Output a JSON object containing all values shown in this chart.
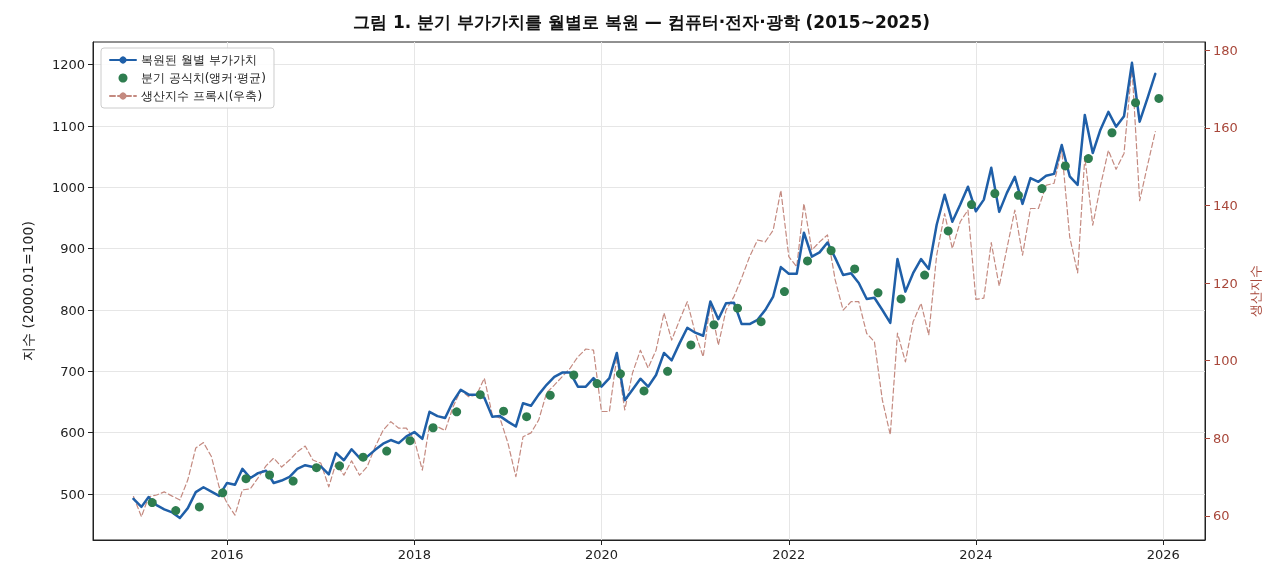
{
  "chart_data": {
    "type": "line",
    "title": "그림 1. 분기 부가가치를 월별로 복원 — 컴퓨터·전자·광학 (2015~2025)",
    "ylabel": "지수 (2000.01=100)",
    "y2label": "생산지수",
    "x": [
      "2015-01",
      "2015-02",
      "2015-03",
      "2015-04",
      "2015-05",
      "2015-06",
      "2015-07",
      "2015-08",
      "2015-09",
      "2015-10",
      "2015-11",
      "2015-12",
      "2016-01",
      "2016-02",
      "2016-03",
      "2016-04",
      "2016-05",
      "2016-06",
      "2016-07",
      "2016-08",
      "2016-09",
      "2016-10",
      "2016-11",
      "2016-12",
      "2017-01",
      "2017-02",
      "2017-03",
      "2017-04",
      "2017-05",
      "2017-06",
      "2017-07",
      "2017-08",
      "2017-09",
      "2017-10",
      "2017-11",
      "2017-12",
      "2018-01",
      "2018-02",
      "2018-03",
      "2018-04",
      "2018-05",
      "2018-06",
      "2018-07",
      "2018-08",
      "2018-09",
      "2018-10",
      "2018-11",
      "2018-12",
      "2019-01",
      "2019-02",
      "2019-03",
      "2019-04",
      "2019-05",
      "2019-06",
      "2019-07",
      "2019-08",
      "2019-09",
      "2019-10",
      "2019-11",
      "2019-12",
      "2020-01",
      "2020-02",
      "2020-03",
      "2020-04",
      "2020-05",
      "2020-06",
      "2020-07",
      "2020-08",
      "2020-09",
      "2020-10",
      "2020-11",
      "2020-12",
      "2021-01",
      "2021-02",
      "2021-03",
      "2021-04",
      "2021-05",
      "2021-06",
      "2021-07",
      "2021-08",
      "2021-09",
      "2021-10",
      "2021-11",
      "2021-12",
      "2022-01",
      "2022-02",
      "2022-03",
      "2022-04",
      "2022-05",
      "2022-06",
      "2022-07",
      "2022-08",
      "2022-09",
      "2022-10",
      "2022-11",
      "2022-12",
      "2023-01",
      "2023-02",
      "2023-03",
      "2023-04",
      "2023-05",
      "2023-06",
      "2023-07",
      "2023-08",
      "2023-09",
      "2023-10",
      "2023-11",
      "2023-12",
      "2024-01",
      "2024-02",
      "2024-03",
      "2024-04",
      "2024-05",
      "2024-06",
      "2024-07",
      "2024-08",
      "2024-09",
      "2024-10",
      "2024-11",
      "2024-12",
      "2025-01",
      "2025-02",
      "2025-03",
      "2025-04",
      "2025-05",
      "2025-06",
      "2025-07",
      "2025-08",
      "2025-09",
      "2025-10",
      "2025-11",
      "2025-12"
    ],
    "series": [
      {
        "name": "복원된 월별 부가가치",
        "type": "line",
        "color": "#1f5fa8",
        "marker": "none",
        "line_style": "solid",
        "values": [
          492,
          479,
          495,
          482,
          475,
          470,
          461,
          477,
          503,
          511,
          504,
          497,
          518,
          515,
          541,
          526,
          534,
          538,
          518,
          522,
          528,
          541,
          547,
          544,
          545,
          532,
          567,
          555,
          573,
          559,
          561,
          572,
          582,
          588,
          583,
          594,
          601,
          590,
          634,
          627,
          624,
          651,
          670,
          662,
          662,
          657,
          626,
          627,
          618,
          610,
          648,
          644,
          662,
          678,
          691,
          698,
          698,
          675,
          675,
          689,
          675,
          689,
          730,
          653,
          670,
          688,
          675,
          694,
          730,
          718,
          746,
          771,
          763,
          758,
          814,
          785,
          811,
          812,
          777,
          777,
          784,
          800,
          822,
          870,
          859,
          859,
          926,
          887,
          894,
          910,
          885,
          857,
          860,
          844,
          818,
          820,
          800,
          779,
          883,
          830,
          860,
          883,
          867,
          939,
          988,
          944,
          972,
          1001,
          961,
          980,
          1032,
          960,
          991,
          1017,
          973,
          1015,
          1009,
          1019,
          1022,
          1069,
          1018,
          1004,
          1118,
          1056,
          1094,
          1123,
          1099,
          1116,
          1203,
          1107,
          1146,
          1185
        ]
      },
      {
        "name": "분기 공식치(앵커·평균)",
        "type": "scatter",
        "color": "#2e7d4f",
        "marker": "circle",
        "x": [
          "2015-03-15",
          "2015-06-15",
          "2015-09-15",
          "2015-12-15",
          "2016-03-15",
          "2016-06-15",
          "2016-09-15",
          "2016-12-15",
          "2017-03-15",
          "2017-06-15",
          "2017-09-15",
          "2017-12-15",
          "2018-03-15",
          "2018-06-15",
          "2018-09-15",
          "2018-12-15",
          "2019-03-15",
          "2019-06-15",
          "2019-09-15",
          "2019-12-15",
          "2020-03-15",
          "2020-06-15",
          "2020-09-15",
          "2020-12-15",
          "2021-03-15",
          "2021-06-15",
          "2021-09-15",
          "2021-12-15",
          "2022-03-15",
          "2022-06-15",
          "2022-09-15",
          "2022-12-15",
          "2023-03-15",
          "2023-06-15",
          "2023-09-15",
          "2023-12-15",
          "2024-03-15",
          "2024-06-15",
          "2024-09-15",
          "2024-12-15",
          "2025-03-15",
          "2025-06-15",
          "2025-09-15",
          "2025-12-15"
        ],
        "values": [
          486,
          473,
          479,
          502,
          525,
          531,
          521,
          543,
          546,
          560,
          570,
          587,
          608,
          634,
          662,
          635,
          626,
          661,
          694,
          680,
          696,
          668,
          700,
          743,
          776,
          803,
          781,
          830,
          880,
          897,
          867,
          828,
          818,
          857,
          929,
          972,
          990,
          987,
          998,
          1035,
          1047,
          1089,
          1138,
          1145
        ]
      },
      {
        "name": "생산지수 프록시(우축)",
        "type": "line",
        "axis": "y2",
        "color": "#c48a80",
        "marker": "none",
        "line_style": "dashed",
        "values": [
          65.0,
          59.8,
          64.9,
          65.4,
          66.2,
          65.1,
          64.1,
          69.3,
          77.5,
          78.9,
          75.3,
          67.5,
          63.3,
          60.2,
          66.7,
          67.0,
          69.8,
          72.9,
          74.9,
          72.6,
          74.4,
          76.5,
          78.0,
          74.4,
          73.6,
          67.5,
          73.6,
          70.5,
          74.2,
          70.5,
          72.7,
          77.8,
          82.1,
          84.3,
          82.6,
          82.6,
          79.6,
          71.8,
          83.4,
          83.0,
          82.0,
          88.1,
          92.4,
          90.7,
          91.2,
          95.5,
          86.0,
          85.2,
          78.8,
          70.1,
          80.4,
          81.4,
          84.7,
          91.7,
          93.7,
          95.9,
          98.1,
          101.0,
          103.0,
          102.7,
          86.9,
          86.9,
          101.0,
          87.3,
          96.8,
          102.7,
          98.1,
          102.7,
          112.3,
          105.3,
          110.5,
          115.2,
          107.1,
          101.0,
          114.8,
          104.0,
          113.0,
          116.5,
          121.3,
          126.8,
          131.1,
          130.6,
          133.6,
          143.9,
          126.8,
          124.2,
          140.5,
          128.5,
          130.6,
          132.4,
          120.8,
          113.0,
          115.2,
          115.2,
          107.0,
          104.9,
          89.9,
          80.9,
          107.1,
          99.7,
          110.0,
          114.8,
          106.6,
          127.2,
          137.9,
          128.9,
          135.8,
          138.8,
          115.8,
          116.1,
          130.4,
          119.2,
          128.9,
          138.8,
          127.2,
          139.2,
          139.2,
          145.2,
          145.7,
          154.4,
          131.9,
          122.6,
          152.5,
          134.9,
          145.0,
          154.2,
          149.3,
          153.4,
          175.7,
          141.2,
          150.4,
          159.0
        ]
      }
    ],
    "xlim": [
      "2014-07-27",
      "2026-06-13"
    ],
    "xticks": [
      "2016",
      "2018",
      "2020",
      "2022",
      "2024",
      "2026"
    ],
    "ylim": [
      425,
      1237
    ],
    "yticks": [
      500,
      600,
      700,
      800,
      900,
      1000,
      1100,
      1200
    ],
    "y2lim": [
      53.8,
      182.1
    ],
    "y2ticks": [
      60,
      80,
      100,
      120,
      140,
      160,
      180
    ],
    "grid": true,
    "legend": "top left"
  }
}
